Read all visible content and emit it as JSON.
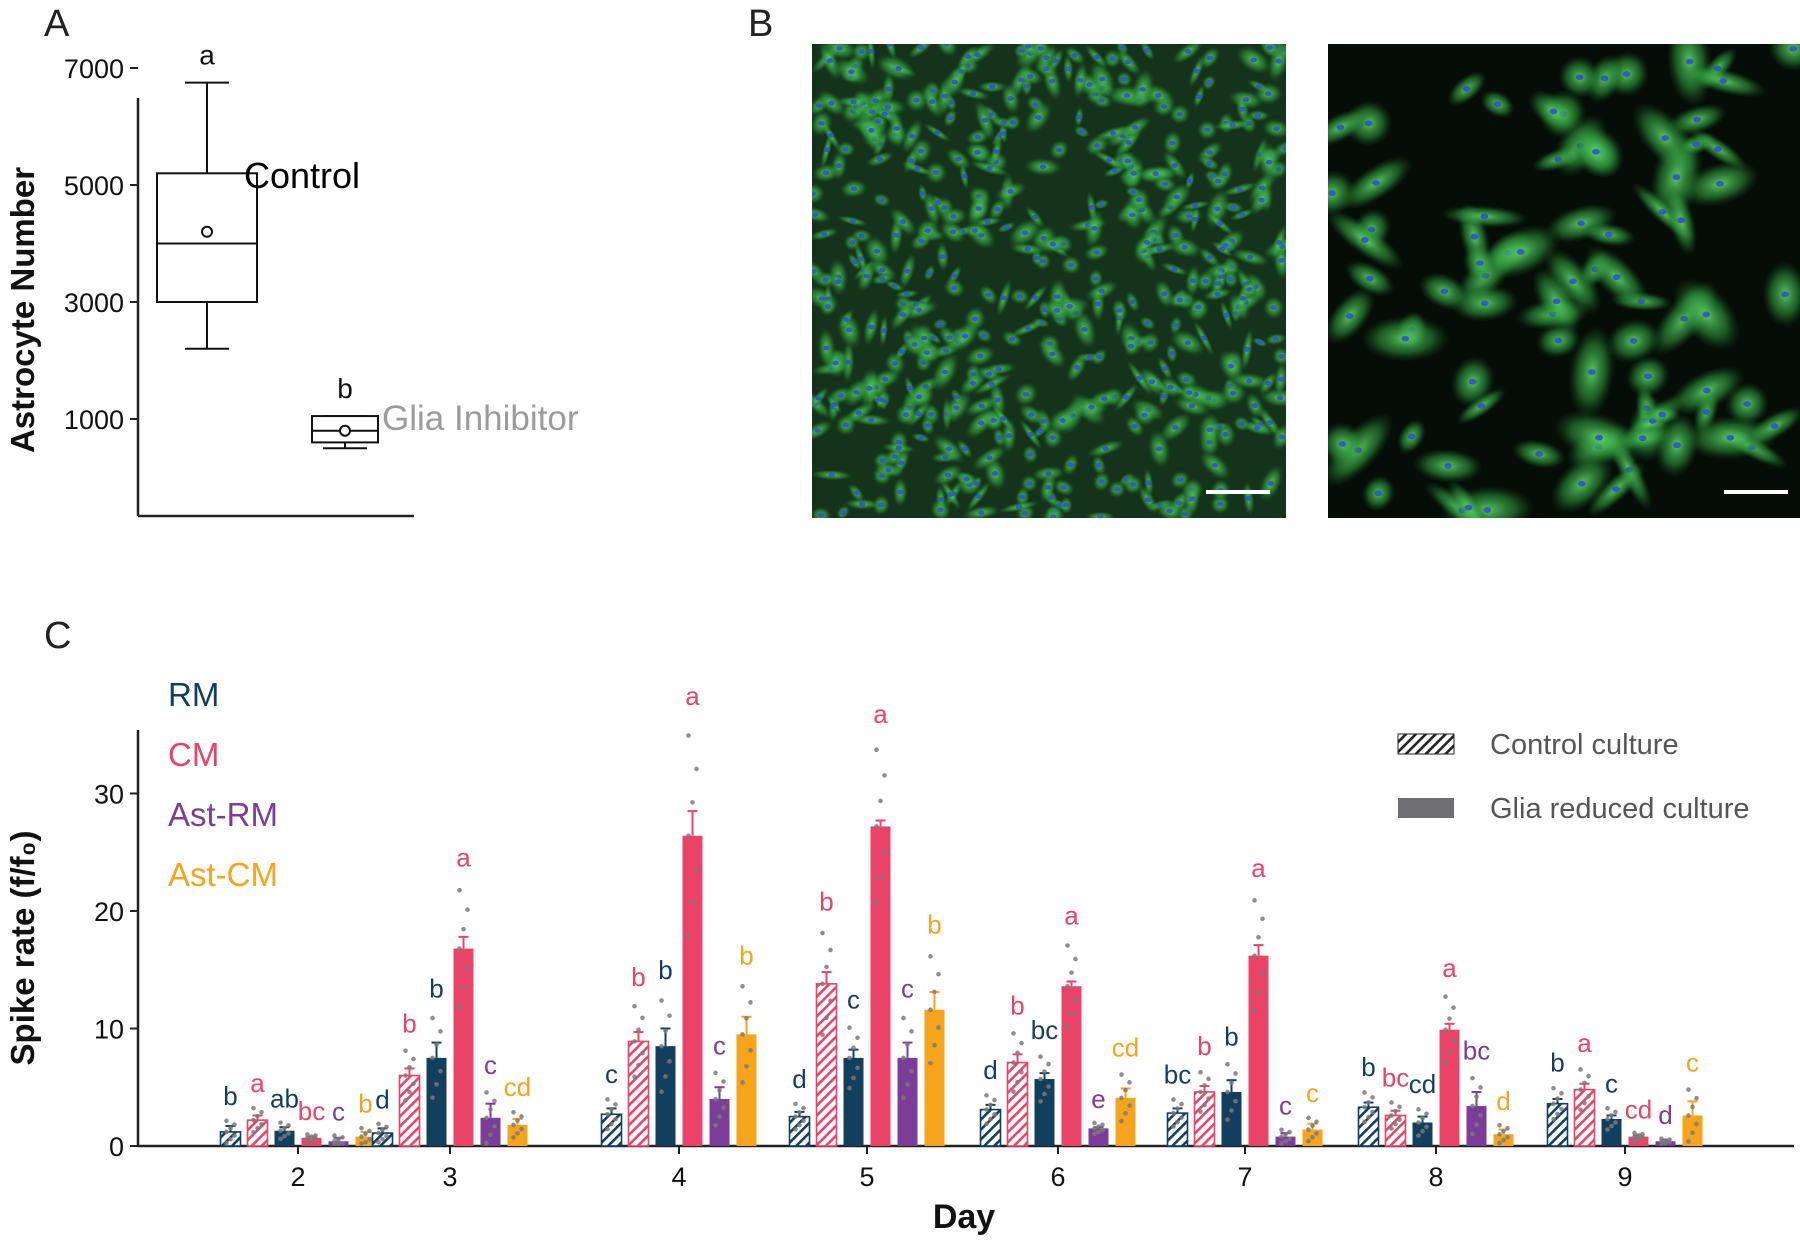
{
  "panel_labels": {
    "a": "A",
    "b": "B",
    "c": "C"
  },
  "panel_a": {
    "ylabel": "Astrocyte Number",
    "yticks": [
      "1000",
      "3000",
      "5000",
      "7000"
    ],
    "control_label": "Control",
    "inhibitor_label": "Glia Inhibitor",
    "letter_control": "a",
    "letter_inhibitor": "b",
    "colors": {
      "control_label": "#000000",
      "inhibitor_label": "#9b9b9b"
    }
  },
  "panel_b": {
    "images": [
      "fluorescence-micrograph-dense",
      "fluorescence-micrograph-sparse"
    ],
    "colors": {
      "cells": "#2f9a3c",
      "nuclei": "#2a55c9",
      "background": "#0b1a0d"
    }
  },
  "panel_c": {
    "ylabel": "Spike rate (f/f₀)",
    "xlabel": "Day",
    "legend_media": [
      {
        "label": "RM",
        "color": "#123f5e"
      },
      {
        "label": "CM",
        "color": "#e94468"
      },
      {
        "label": "Ast-RM",
        "color": "#7b3d98"
      },
      {
        "label": "Ast-CM",
        "color": "#f5a41b"
      }
    ],
    "legend_culture": [
      "Control culture",
      "Glia reduced culture"
    ]
  },
  "chart_data": [
    {
      "type": "box",
      "ylabel": "Astrocyte Number",
      "ylim": [
        300,
        7300
      ],
      "yticks": [
        1000,
        3000,
        5000,
        7000
      ],
      "categories": [
        "Control",
        "Glia Inhibitor"
      ],
      "boxes": [
        {
          "name": "Control",
          "whisker_low": 2200,
          "q1": 3000,
          "median": 4000,
          "mean": 4200,
          "q3": 5200,
          "whisker_high": 6750,
          "letter": "a"
        },
        {
          "name": "Glia Inhibitor",
          "whisker_low": 500,
          "q1": 600,
          "median": 800,
          "mean": 800,
          "q3": 1050,
          "whisker_high": 1050,
          "letter": "b"
        }
      ]
    },
    {
      "type": "bar",
      "xlabel": "Day",
      "ylabel": "Spike rate (f/f₀)",
      "ylim": [
        0,
        35
      ],
      "yticks": [
        0,
        10,
        20,
        30
      ],
      "categories": [
        "2",
        "3",
        "4",
        "5",
        "6",
        "7",
        "8",
        "9"
      ],
      "series": [
        {
          "name": "RM",
          "culture": "Control culture",
          "color": "#123f5e",
          "hatched": true,
          "values": [
            1.2,
            1.1,
            2.7,
            2.5,
            3.1,
            2.8,
            3.3,
            3.6
          ],
          "errors": [
            0.5,
            0.4,
            0.5,
            0.4,
            0.4,
            0.4,
            0.4,
            0.4
          ],
          "letters": [
            "b",
            "d",
            "c",
            "d",
            "d",
            "bc",
            "b",
            "b"
          ]
        },
        {
          "name": "CM",
          "culture": "Control culture",
          "color": "#e94468",
          "hatched": true,
          "values": [
            2.2,
            6.0,
            8.9,
            13.8,
            7.1,
            4.6,
            2.6,
            4.8
          ],
          "errors": [
            0.4,
            0.6,
            0.8,
            1.0,
            0.7,
            0.5,
            0.4,
            0.5
          ],
          "letters": [
            "a",
            "b",
            "b",
            "b",
            "b",
            "b",
            "bc",
            "a"
          ]
        },
        {
          "name": "RM",
          "culture": "Glia reduced culture",
          "color": "#123f5e",
          "hatched": false,
          "values": [
            1.3,
            7.5,
            8.5,
            7.5,
            5.7,
            4.6,
            2.0,
            2.3
          ],
          "errors": [
            0.3,
            1.3,
            1.5,
            0.7,
            0.5,
            1.0,
            0.5,
            0.3
          ],
          "letters": [
            "ab",
            "b",
            "b",
            "c",
            "bc",
            "b",
            "cd",
            "c"
          ]
        },
        {
          "name": "CM",
          "culture": "Glia reduced culture",
          "color": "#e94468",
          "hatched": false,
          "values": [
            0.7,
            16.8,
            26.4,
            27.2,
            13.6,
            16.2,
            9.9,
            0.8
          ],
          "errors": [
            0.1,
            1.0,
            2.1,
            0.5,
            0.4,
            0.9,
            0.5,
            0.1
          ],
          "letters": [
            "bc",
            "a",
            "a",
            "a",
            "a",
            "a",
            "a",
            "cd"
          ]
        },
        {
          "name": "Ast-RM",
          "culture": "Glia reduced culture",
          "color": "#7b3d98",
          "hatched": false,
          "values": [
            0.4,
            2.4,
            4.0,
            7.5,
            1.5,
            0.8,
            3.4,
            0.4
          ],
          "errors": [
            0.3,
            1.2,
            1.0,
            1.3,
            0.1,
            0.3,
            1.2,
            0.1
          ],
          "letters": [
            "c",
            "c",
            "c",
            "c",
            "e",
            "c",
            "bc",
            "d"
          ]
        },
        {
          "name": "Ast-CM",
          "culture": "Glia reduced culture",
          "color": "#f5a41b",
          "hatched": false,
          "values": [
            0.8,
            1.8,
            9.5,
            11.6,
            4.1,
            1.4,
            1.0,
            2.6
          ],
          "errors": [
            0.4,
            0.5,
            1.5,
            1.5,
            0.8,
            0.5,
            0.4,
            1.2
          ],
          "letters": [
            "b",
            "cd",
            "b",
            "b",
            "cd",
            "c",
            "d",
            "c"
          ]
        }
      ]
    }
  ]
}
